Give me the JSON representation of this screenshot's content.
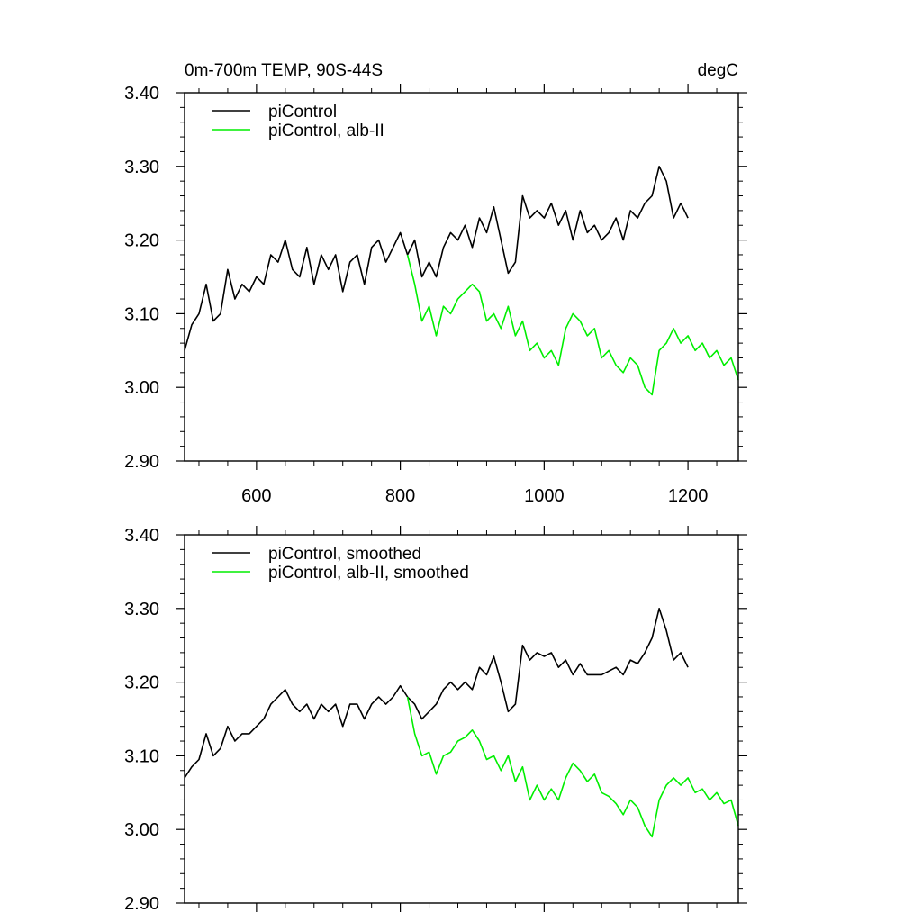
{
  "chart_data": [
    {
      "type": "line",
      "title": "0m-700m TEMP, 90S-44S",
      "units": "degC",
      "xlim": [
        500,
        1270
      ],
      "ylim": [
        2.9,
        3.4
      ],
      "xticks": [
        {
          "value": 600,
          "label": "600"
        },
        {
          "value": 800,
          "label": "800"
        },
        {
          "value": 1000,
          "label": "1000"
        },
        {
          "value": 1200,
          "label": "1200"
        }
      ],
      "yticks": [
        {
          "value": 2.9,
          "label": "2.90"
        },
        {
          "value": 3.0,
          "label": "3.00"
        },
        {
          "value": 3.1,
          "label": "3.10"
        },
        {
          "value": 3.2,
          "label": "3.20"
        },
        {
          "value": 3.3,
          "label": "3.30"
        },
        {
          "value": 3.4,
          "label": "3.40"
        }
      ],
      "grid": false,
      "legend_position": "top-left",
      "series": [
        {
          "name": "piControl",
          "color": "#000000",
          "x": [
            500,
            510,
            520,
            530,
            540,
            550,
            560,
            570,
            580,
            590,
            600,
            610,
            620,
            630,
            640,
            650,
            660,
            670,
            680,
            690,
            700,
            710,
            720,
            730,
            740,
            750,
            760,
            770,
            780,
            790,
            800,
            810,
            820,
            830,
            840,
            850,
            860,
            870,
            880,
            890,
            900,
            910,
            920,
            930,
            940,
            950,
            960,
            970,
            980,
            990,
            1000,
            1010,
            1020,
            1030,
            1040,
            1050,
            1060,
            1070,
            1080,
            1090,
            1100,
            1110,
            1120,
            1130,
            1140,
            1150,
            1160,
            1170,
            1180,
            1190,
            1200
          ],
          "y": [
            3.05,
            3.085,
            3.1,
            3.14,
            3.09,
            3.1,
            3.16,
            3.12,
            3.14,
            3.13,
            3.15,
            3.14,
            3.18,
            3.17,
            3.2,
            3.16,
            3.15,
            3.19,
            3.14,
            3.18,
            3.16,
            3.18,
            3.13,
            3.17,
            3.18,
            3.14,
            3.19,
            3.2,
            3.17,
            3.19,
            3.21,
            3.18,
            3.2,
            3.15,
            3.17,
            3.15,
            3.19,
            3.21,
            3.2,
            3.22,
            3.19,
            3.23,
            3.21,
            3.245,
            3.2,
            3.155,
            3.17,
            3.26,
            3.23,
            3.24,
            3.23,
            3.25,
            3.22,
            3.24,
            3.2,
            3.24,
            3.21,
            3.22,
            3.2,
            3.21,
            3.23,
            3.2,
            3.24,
            3.23,
            3.25,
            3.26,
            3.3,
            3.28,
            3.23,
            3.25,
            3.23
          ]
        },
        {
          "name": "piControl, alb-II",
          "color": "#00ee00",
          "x": [
            810,
            820,
            830,
            840,
            850,
            860,
            870,
            880,
            890,
            900,
            910,
            920,
            930,
            940,
            950,
            960,
            970,
            980,
            990,
            1000,
            1010,
            1020,
            1030,
            1040,
            1050,
            1060,
            1070,
            1080,
            1090,
            1100,
            1110,
            1120,
            1130,
            1140,
            1150,
            1160,
            1170,
            1180,
            1190,
            1200,
            1210,
            1220,
            1230,
            1240,
            1250,
            1260,
            1270
          ],
          "y": [
            3.18,
            3.14,
            3.09,
            3.11,
            3.07,
            3.11,
            3.1,
            3.12,
            3.13,
            3.14,
            3.13,
            3.09,
            3.1,
            3.08,
            3.11,
            3.07,
            3.09,
            3.05,
            3.06,
            3.04,
            3.05,
            3.03,
            3.08,
            3.1,
            3.09,
            3.07,
            3.08,
            3.04,
            3.05,
            3.03,
            3.02,
            3.04,
            3.03,
            3.0,
            2.99,
            3.05,
            3.06,
            3.08,
            3.06,
            3.07,
            3.05,
            3.06,
            3.04,
            3.05,
            3.03,
            3.04,
            3.01
          ]
        }
      ]
    },
    {
      "type": "line",
      "xlim": [
        500,
        1270
      ],
      "ylim": [
        2.9,
        3.4
      ],
      "xticks": [
        {
          "value": 600,
          "label": ""
        },
        {
          "value": 800,
          "label": ""
        },
        {
          "value": 1000,
          "label": ""
        },
        {
          "value": 1200,
          "label": ""
        }
      ],
      "yticks": [
        {
          "value": 2.9,
          "label": "2.90"
        },
        {
          "value": 3.0,
          "label": "3.00"
        },
        {
          "value": 3.1,
          "label": "3.10"
        },
        {
          "value": 3.2,
          "label": "3.20"
        },
        {
          "value": 3.3,
          "label": "3.30"
        },
        {
          "value": 3.4,
          "label": "3.40"
        }
      ],
      "grid": false,
      "legend_position": "top-left",
      "series": [
        {
          "name": "piControl, smoothed",
          "color": "#000000",
          "x": [
            500,
            510,
            520,
            530,
            540,
            550,
            560,
            570,
            580,
            590,
            600,
            610,
            620,
            630,
            640,
            650,
            660,
            670,
            680,
            690,
            700,
            710,
            720,
            730,
            740,
            750,
            760,
            770,
            780,
            790,
            800,
            810,
            820,
            830,
            840,
            850,
            860,
            870,
            880,
            890,
            900,
            910,
            920,
            930,
            940,
            950,
            960,
            970,
            980,
            990,
            1000,
            1010,
            1020,
            1030,
            1040,
            1050,
            1060,
            1070,
            1080,
            1090,
            1100,
            1110,
            1120,
            1130,
            1140,
            1150,
            1160,
            1170,
            1180,
            1190,
            1200
          ],
          "y": [
            3.07,
            3.085,
            3.095,
            3.13,
            3.1,
            3.11,
            3.14,
            3.12,
            3.13,
            3.13,
            3.14,
            3.15,
            3.17,
            3.18,
            3.19,
            3.17,
            3.16,
            3.17,
            3.15,
            3.17,
            3.16,
            3.17,
            3.14,
            3.17,
            3.17,
            3.15,
            3.17,
            3.18,
            3.17,
            3.18,
            3.195,
            3.18,
            3.17,
            3.15,
            3.16,
            3.17,
            3.19,
            3.2,
            3.19,
            3.2,
            3.19,
            3.22,
            3.21,
            3.235,
            3.2,
            3.16,
            3.17,
            3.25,
            3.23,
            3.24,
            3.235,
            3.24,
            3.22,
            3.23,
            3.21,
            3.225,
            3.21,
            3.21,
            3.21,
            3.215,
            3.22,
            3.21,
            3.23,
            3.225,
            3.24,
            3.26,
            3.3,
            3.27,
            3.23,
            3.24,
            3.22
          ]
        },
        {
          "name": "piControl, alb-II, smoothed",
          "color": "#00ee00",
          "x": [
            810,
            820,
            830,
            840,
            850,
            860,
            870,
            880,
            890,
            900,
            910,
            920,
            930,
            940,
            950,
            960,
            970,
            980,
            990,
            1000,
            1010,
            1020,
            1030,
            1040,
            1050,
            1060,
            1070,
            1080,
            1090,
            1100,
            1110,
            1120,
            1130,
            1140,
            1150,
            1160,
            1170,
            1180,
            1190,
            1200,
            1210,
            1220,
            1230,
            1240,
            1250,
            1260,
            1270
          ],
          "y": [
            3.18,
            3.13,
            3.1,
            3.105,
            3.075,
            3.1,
            3.105,
            3.12,
            3.125,
            3.135,
            3.12,
            3.095,
            3.1,
            3.08,
            3.1,
            3.065,
            3.085,
            3.04,
            3.06,
            3.04,
            3.055,
            3.04,
            3.07,
            3.09,
            3.08,
            3.065,
            3.075,
            3.05,
            3.045,
            3.035,
            3.02,
            3.04,
            3.03,
            3.005,
            2.99,
            3.04,
            3.06,
            3.07,
            3.06,
            3.07,
            3.05,
            3.055,
            3.04,
            3.05,
            3.035,
            3.04,
            3.005
          ]
        }
      ]
    }
  ]
}
